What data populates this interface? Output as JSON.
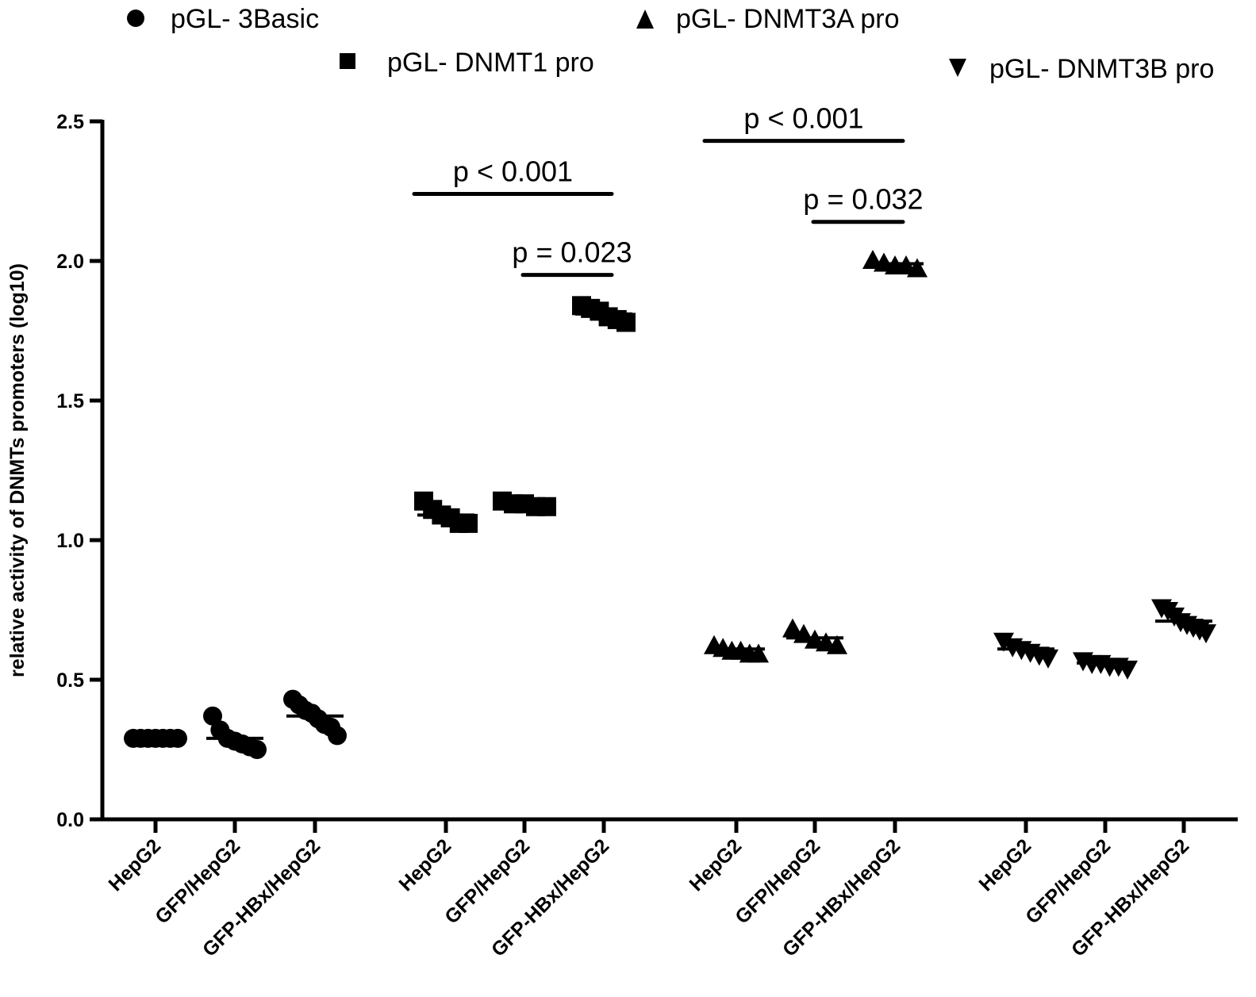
{
  "chart_data": {
    "type": "scatter",
    "title": "",
    "xlabel": "",
    "ylabel": "relative activity of DNMTs promoters (log10)",
    "ylim": [
      0,
      2.5
    ],
    "yticks": [
      "0.0",
      "0.5",
      "1.0",
      "1.5",
      "2.0",
      "2.5"
    ],
    "ytick_values": [
      0,
      0.5,
      1.0,
      1.5,
      2.0,
      2.5
    ],
    "grid": false,
    "legend_position": "top",
    "categories": [
      "HepG2",
      "GFP/HepG2",
      "GFP-HBx/HepG2"
    ],
    "series": [
      {
        "name": "pGL- 3Basic",
        "marker": "circle",
        "groups": [
          {
            "category": "HepG2",
            "mean": 0.29,
            "points": [
              0.29,
              0.29,
              0.29,
              0.29,
              0.29,
              0.29,
              0.29
            ]
          },
          {
            "category": "GFP/HepG2",
            "mean": 0.29,
            "points": [
              0.37,
              0.32,
              0.29,
              0.28,
              0.27,
              0.26,
              0.25
            ]
          },
          {
            "category": "GFP-HBx/HepG2",
            "mean": 0.37,
            "points": [
              0.43,
              0.41,
              0.39,
              0.38,
              0.36,
              0.34,
              0.33,
              0.3
            ]
          }
        ]
      },
      {
        "name": "pGL- DNMT1 pro",
        "marker": "square",
        "groups": [
          {
            "category": "HepG2",
            "mean": 1.09,
            "points": [
              1.14,
              1.11,
              1.09,
              1.08,
              1.06,
              1.06
            ]
          },
          {
            "category": "GFP/HepG2",
            "mean": 1.13,
            "points": [
              1.14,
              1.13,
              1.13,
              1.12,
              1.12
            ]
          },
          {
            "category": "GFP-HBx/HepG2",
            "mean": 1.81,
            "points": [
              1.84,
              1.83,
              1.82,
              1.8,
              1.79,
              1.78
            ]
          }
        ]
      },
      {
        "name": "pGL- DNMT3A pro",
        "marker": "triangle-up",
        "groups": [
          {
            "category": "HepG2",
            "mean": 0.61,
            "points": [
              0.62,
              0.61,
              0.6,
              0.6,
              0.59,
              0.59
            ]
          },
          {
            "category": "GFP/HepG2",
            "mean": 0.65,
            "points": [
              0.68,
              0.66,
              0.64,
              0.63,
              0.62
            ]
          },
          {
            "category": "GFP-HBx/HepG2",
            "mean": 1.99,
            "points": [
              2.0,
              1.99,
              1.98,
              1.98,
              1.97
            ]
          }
        ]
      },
      {
        "name": "pGL- DNMT3B pro",
        "marker": "triangle-down",
        "groups": [
          {
            "category": "HepG2",
            "mean": 0.61,
            "points": [
              0.64,
              0.62,
              0.61,
              0.6,
              0.59,
              0.58
            ]
          },
          {
            "category": "GFP/HepG2",
            "mean": 0.56,
            "points": [
              0.57,
              0.56,
              0.56,
              0.55,
              0.55,
              0.54
            ]
          },
          {
            "category": "GFP-HBx/HepG2",
            "mean": 0.71,
            "points": [
              0.76,
              0.75,
              0.73,
              0.71,
              0.7,
              0.69,
              0.68,
              0.67
            ]
          }
        ]
      }
    ],
    "annotations": [
      {
        "text": "p < 0.001",
        "series": "pGL- DNMT1 pro",
        "from": "HepG2",
        "to": "GFP-HBx/HepG2",
        "y": 2.24
      },
      {
        "text": "p = 0.023",
        "series": "pGL- DNMT1 pro",
        "from": "GFP/HepG2",
        "to": "GFP-HBx/HepG2",
        "y": 1.95
      },
      {
        "text": "p < 0.001",
        "series": "pGL- DNMT3A pro",
        "from": "HepG2",
        "to": "GFP-HBx/HepG2",
        "y": 2.43
      },
      {
        "text": "p = 0.032",
        "series": "pGL- DNMT3A pro",
        "from": "GFP/HepG2",
        "to": "GFP-HBx/HepG2",
        "y": 2.14
      }
    ]
  }
}
